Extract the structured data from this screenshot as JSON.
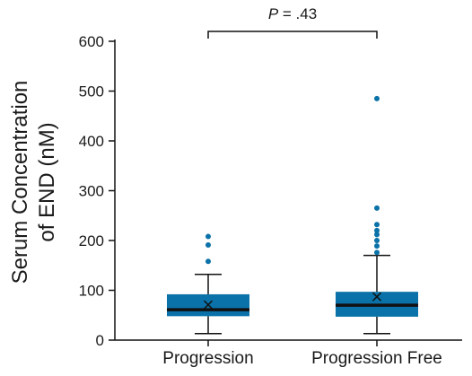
{
  "chart_data": {
    "type": "boxplot",
    "ylabel_line1": "Serum Concentration",
    "ylabel_line2": "of END (nM)",
    "ylim": [
      0,
      600
    ],
    "yticks": [
      "0",
      "100",
      "200",
      "300",
      "400",
      "500",
      "600"
    ],
    "categories": [
      "Progression",
      "Progression Free"
    ],
    "series": [
      {
        "category": "Progression",
        "whisker_low": 13,
        "q1": 48,
        "median": 61,
        "q3": 92,
        "whisker_high": 132,
        "mean": 71,
        "outliers": [
          158,
          191,
          208
        ]
      },
      {
        "category": "Progression Free",
        "whisker_low": 13,
        "q1": 47,
        "median": 70,
        "q3": 97,
        "whisker_high": 170,
        "mean": 87,
        "outliers": [
          176,
          189,
          200,
          212,
          220,
          232,
          265,
          485
        ]
      }
    ],
    "annotation": {
      "italic": "P",
      "text": " = .43"
    },
    "colors": {
      "box": "#0a72a8",
      "median": "#111111",
      "outlier": "#0a72a8",
      "axis": "#111111"
    }
  }
}
